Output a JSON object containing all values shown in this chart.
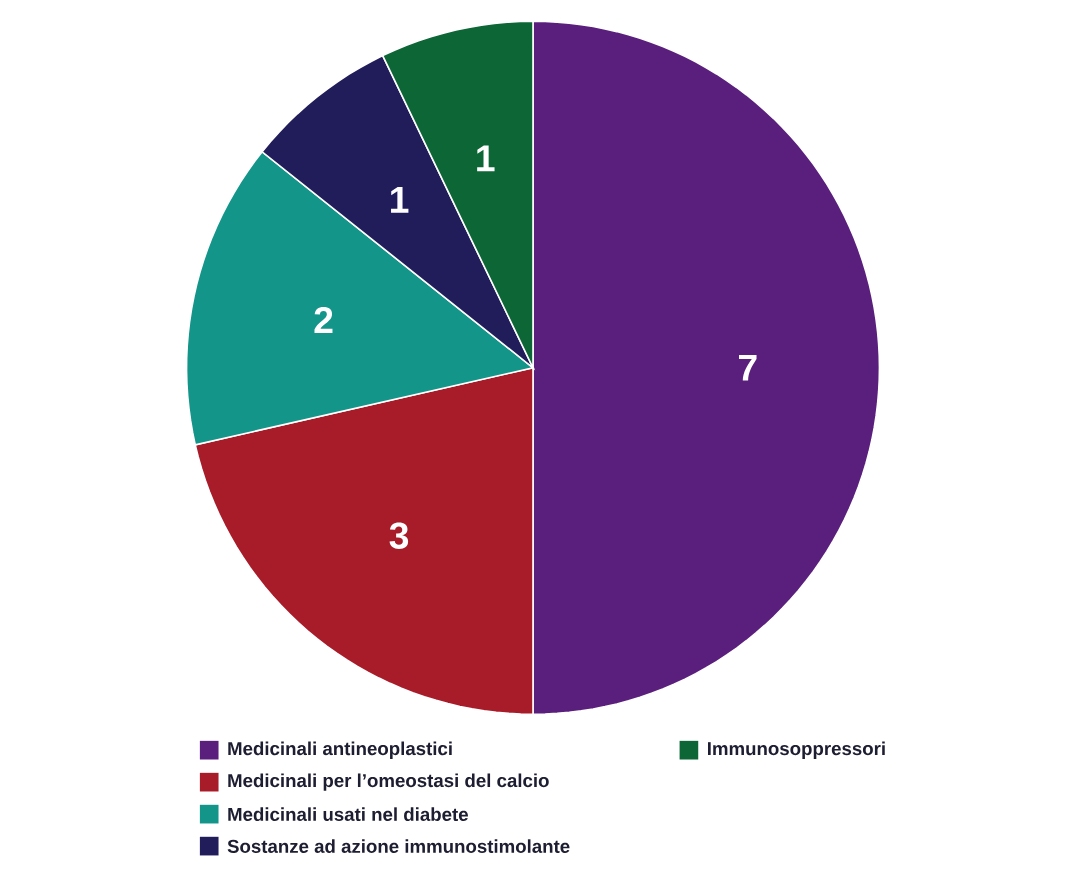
{
  "chart_data": {
    "type": "pie",
    "categories": [
      "Medicinali antineoplastici",
      "Medicinali per l’omeostasi del calcio",
      "Medicinali usati nel diabete",
      "Sostanze ad azione immunostimolante",
      "Immunosoppressori"
    ],
    "values": [
      7,
      3,
      2,
      1,
      1
    ],
    "colors": [
      "#5a1f7c",
      "#a81c2a",
      "#13958a",
      "#201d5a",
      "#0d6636"
    ],
    "data_labels": true,
    "legend": "bottom"
  }
}
